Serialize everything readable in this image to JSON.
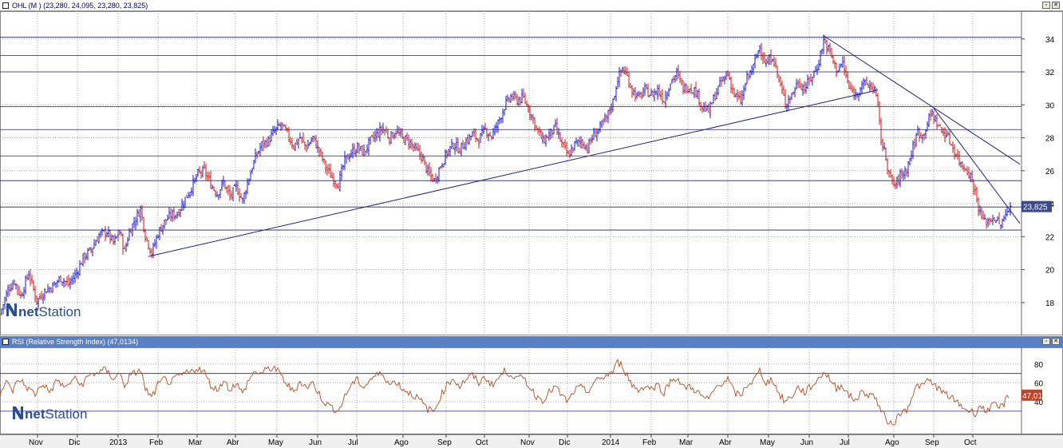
{
  "main_panel": {
    "header": "OHL (M ) (23,280, 24,095, 23,280, 23,825)",
    "last_price_label": "23,825"
  },
  "rsi_panel": {
    "header": "RSI (Relative Strength Index) (47,0134)",
    "last_value_label": "47,01"
  },
  "logo": {
    "text_bold": "net",
    "text_light": "Station"
  },
  "colors": {
    "up": "#0000c8",
    "down": "#c00000",
    "rsi_line": "#b84a1c",
    "trend_line": "#1a237e",
    "h_line": "#1a237e",
    "grid": "#a8a8a8",
    "rsi_bar": "#5b7fc5",
    "price_label_bg": "#3a4a8a",
    "rsi_label_bg": "#c0442a"
  },
  "chart_data": [
    {
      "type": "ohlc",
      "title": "OHL (M )",
      "y_ticks": [
        18,
        20,
        22,
        24,
        26,
        28,
        30,
        32,
        34
      ],
      "ylim": [
        16.2,
        35.2
      ],
      "x_tick_labels": [
        "Nov",
        "Dic",
        "2013",
        "Feb",
        "Mar",
        "Abr",
        "May",
        "Jun",
        "Jul",
        "Ago",
        "Sep",
        "Oct",
        "Nov",
        "Dic",
        "2014",
        "Feb",
        "Mar",
        "Abr",
        "May",
        "Jun",
        "Jul",
        "Ago",
        "Sep",
        "Oct"
      ],
      "grid": "dotted",
      "last": {
        "open": 23.28,
        "high": 24.095,
        "low": 23.28,
        "close": 23.825
      },
      "path": [
        [
          0,
          17.3
        ],
        [
          10,
          18.8
        ],
        [
          18,
          19.3
        ],
        [
          26,
          18.4
        ],
        [
          36,
          19.8
        ],
        [
          46,
          18.1
        ],
        [
          56,
          18.7
        ],
        [
          66,
          19.0
        ],
        [
          76,
          19.5
        ],
        [
          86,
          19.1
        ],
        [
          96,
          19.8
        ],
        [
          104,
          20.7
        ],
        [
          114,
          21.2
        ],
        [
          124,
          22.1
        ],
        [
          134,
          22.3
        ],
        [
          142,
          21.6
        ],
        [
          150,
          22.3
        ],
        [
          156,
          21.1
        ],
        [
          162,
          22.3
        ],
        [
          168,
          22.9
        ],
        [
          176,
          23.7
        ],
        [
          182,
          22.1
        ],
        [
          190,
          21.0
        ],
        [
          198,
          22.2
        ],
        [
          206,
          22.9
        ],
        [
          214,
          23.3
        ],
        [
          222,
          23.4
        ],
        [
          232,
          24.3
        ],
        [
          240,
          25.0
        ],
        [
          248,
          25.8
        ],
        [
          256,
          26.0
        ],
        [
          264,
          25.2
        ],
        [
          272,
          24.6
        ],
        [
          280,
          25.3
        ],
        [
          288,
          24.4
        ],
        [
          296,
          25.0
        ],
        [
          304,
          24.2
        ],
        [
          312,
          25.6
        ],
        [
          320,
          26.8
        ],
        [
          328,
          27.6
        ],
        [
          336,
          27.8
        ],
        [
          344,
          28.4
        ],
        [
          352,
          28.8
        ],
        [
          360,
          28.2
        ],
        [
          368,
          27.5
        ],
        [
          376,
          28.0
        ],
        [
          384,
          27.4
        ],
        [
          392,
          28.0
        ],
        [
          400,
          27.2
        ],
        [
          408,
          26.2
        ],
        [
          416,
          25.6
        ],
        [
          424,
          25.2
        ],
        [
          432,
          26.6
        ],
        [
          440,
          27.1
        ],
        [
          448,
          27.4
        ],
        [
          456,
          27.1
        ],
        [
          464,
          27.8
        ],
        [
          472,
          28.2
        ],
        [
          480,
          28.6
        ],
        [
          488,
          28.0
        ],
        [
          496,
          28.4
        ],
        [
          504,
          28.0
        ],
        [
          512,
          27.8
        ],
        [
          520,
          27.3
        ],
        [
          528,
          26.9
        ],
        [
          536,
          25.9
        ],
        [
          544,
          25.4
        ],
        [
          552,
          26.3
        ],
        [
          560,
          27.1
        ],
        [
          568,
          27.6
        ],
        [
          576,
          27.3
        ],
        [
          584,
          27.8
        ],
        [
          592,
          28.2
        ],
        [
          600,
          27.9
        ],
        [
          608,
          28.5
        ],
        [
          616,
          28.1
        ],
        [
          624,
          28.9
        ],
        [
          632,
          29.9
        ],
        [
          640,
          30.5
        ],
        [
          648,
          30.3
        ],
        [
          656,
          30.4
        ],
        [
          664,
          29.6
        ],
        [
          672,
          28.6
        ],
        [
          680,
          27.8
        ],
        [
          688,
          28.2
        ],
        [
          696,
          28.6
        ],
        [
          704,
          27.6
        ],
        [
          712,
          26.9
        ],
        [
          720,
          27.6
        ],
        [
          728,
          27.8
        ],
        [
          736,
          27.4
        ],
        [
          744,
          28.2
        ],
        [
          752,
          28.6
        ],
        [
          760,
          29.2
        ],
        [
          768,
          30.2
        ],
        [
          774,
          31.6
        ],
        [
          780,
          32.2
        ],
        [
          786,
          31.7
        ],
        [
          792,
          30.9
        ],
        [
          800,
          30.4
        ],
        [
          808,
          30.9
        ],
        [
          816,
          30.6
        ],
        [
          824,
          30.9
        ],
        [
          832,
          30.3
        ],
        [
          840,
          31.4
        ],
        [
          848,
          31.9
        ],
        [
          856,
          31.0
        ],
        [
          864,
          31.1
        ],
        [
          872,
          30.8
        ],
        [
          880,
          29.9
        ],
        [
          888,
          29.6
        ],
        [
          896,
          30.6
        ],
        [
          904,
          31.4
        ],
        [
          912,
          31.9
        ],
        [
          920,
          30.6
        ],
        [
          928,
          30.2
        ],
        [
          936,
          31.6
        ],
        [
          944,
          32.3
        ],
        [
          952,
          33.6
        ],
        [
          960,
          32.4
        ],
        [
          968,
          33.0
        ],
        [
          976,
          31.5
        ],
        [
          984,
          30.1
        ],
        [
          992,
          30.6
        ],
        [
          1000,
          31.4
        ],
        [
          1008,
          31.0
        ],
        [
          1016,
          31.6
        ],
        [
          1024,
          32.3
        ],
        [
          1032,
          33.9
        ],
        [
          1040,
          33.2
        ],
        [
          1048,
          32.1
        ],
        [
          1056,
          32.5
        ],
        [
          1064,
          31.0
        ],
        [
          1072,
          30.6
        ],
        [
          1080,
          31.3
        ],
        [
          1088,
          31.2
        ],
        [
          1096,
          31.0
        ],
        [
          1100,
          29.8
        ],
        [
          1104,
          27.9
        ],
        [
          1110,
          26.8
        ],
        [
          1116,
          25.4
        ],
        [
          1122,
          25.1
        ],
        [
          1128,
          25.7
        ],
        [
          1136,
          26.1
        ],
        [
          1144,
          27.4
        ],
        [
          1150,
          28.4
        ],
        [
          1156,
          28.1
        ],
        [
          1162,
          28.9
        ],
        [
          1168,
          29.5
        ],
        [
          1174,
          28.9
        ],
        [
          1180,
          28.4
        ],
        [
          1186,
          28.2
        ],
        [
          1192,
          27.6
        ],
        [
          1198,
          27.0
        ],
        [
          1204,
          26.4
        ],
        [
          1210,
          26.2
        ],
        [
          1216,
          25.7
        ],
        [
          1222,
          24.7
        ],
        [
          1228,
          23.4
        ],
        [
          1234,
          22.9
        ],
        [
          1240,
          23.0
        ],
        [
          1246,
          23.2
        ],
        [
          1252,
          22.7
        ],
        [
          1258,
          23.0
        ],
        [
          1264,
          23.8
        ]
      ],
      "h_lines": [
        34.1,
        33.0,
        32.0,
        29.9,
        28.5,
        26.9,
        25.4,
        23.8,
        22.4
      ],
      "trend_lines": [
        {
          "from": [
            186,
            20.8
          ],
          "to": [
            1100,
            30.9
          ]
        },
        {
          "from": [
            1032,
            34.2
          ],
          "to": [
            1278,
            26.4
          ]
        },
        {
          "from": [
            1170,
            29.8
          ],
          "to": [
            1278,
            22.8
          ]
        }
      ]
    },
    {
      "type": "line",
      "title": "RSI (Relative Strength Index)",
      "y_ticks": [
        40,
        60,
        80
      ],
      "ylim": [
        7,
        96
      ],
      "h_lines": [
        70,
        30
      ],
      "path": [
        [
          0,
          50
        ],
        [
          8,
          60
        ],
        [
          16,
          52
        ],
        [
          24,
          64
        ],
        [
          34,
          55
        ],
        [
          44,
          48
        ],
        [
          54,
          60
        ],
        [
          62,
          50
        ],
        [
          72,
          63
        ],
        [
          82,
          54
        ],
        [
          92,
          65
        ],
        [
          102,
          58
        ],
        [
          112,
          68
        ],
        [
          122,
          71
        ],
        [
          132,
          74
        ],
        [
          142,
          65
        ],
        [
          150,
          70
        ],
        [
          156,
          57
        ],
        [
          162,
          66
        ],
        [
          168,
          70
        ],
        [
          176,
          74
        ],
        [
          182,
          54
        ],
        [
          190,
          44
        ],
        [
          198,
          58
        ],
        [
          206,
          64
        ],
        [
          214,
          60
        ],
        [
          222,
          66
        ],
        [
          232,
          70
        ],
        [
          240,
          72
        ],
        [
          248,
          76
        ],
        [
          256,
          71
        ],
        [
          264,
          58
        ],
        [
          272,
          52
        ],
        [
          280,
          63
        ],
        [
          288,
          53
        ],
        [
          296,
          60
        ],
        [
          304,
          48
        ],
        [
          312,
          64
        ],
        [
          320,
          72
        ],
        [
          328,
          70
        ],
        [
          336,
          75
        ],
        [
          344,
          76
        ],
        [
          352,
          68
        ],
        [
          360,
          58
        ],
        [
          368,
          50
        ],
        [
          376,
          62
        ],
        [
          384,
          55
        ],
        [
          392,
          60
        ],
        [
          400,
          48
        ],
        [
          408,
          38
        ],
        [
          416,
          34
        ],
        [
          424,
          30
        ],
        [
          432,
          45
        ],
        [
          440,
          58
        ],
        [
          448,
          63
        ],
        [
          456,
          55
        ],
        [
          464,
          64
        ],
        [
          472,
          68
        ],
        [
          480,
          70
        ],
        [
          488,
          58
        ],
        [
          496,
          62
        ],
        [
          504,
          54
        ],
        [
          512,
          50
        ],
        [
          520,
          46
        ],
        [
          528,
          40
        ],
        [
          536,
          32
        ],
        [
          544,
          30
        ],
        [
          552,
          46
        ],
        [
          560,
          58
        ],
        [
          568,
          65
        ],
        [
          576,
          56
        ],
        [
          584,
          64
        ],
        [
          592,
          68
        ],
        [
          600,
          60
        ],
        [
          608,
          66
        ],
        [
          616,
          58
        ],
        [
          624,
          64
        ],
        [
          632,
          72
        ],
        [
          640,
          70
        ],
        [
          648,
          64
        ],
        [
          656,
          66
        ],
        [
          664,
          55
        ],
        [
          672,
          46
        ],
        [
          680,
          42
        ],
        [
          688,
          50
        ],
        [
          696,
          56
        ],
        [
          704,
          46
        ],
        [
          712,
          40
        ],
        [
          720,
          52
        ],
        [
          728,
          55
        ],
        [
          736,
          50
        ],
        [
          744,
          60
        ],
        [
          752,
          64
        ],
        [
          760,
          68
        ],
        [
          768,
          72
        ],
        [
          774,
          82
        ],
        [
          780,
          78
        ],
        [
          786,
          68
        ],
        [
          792,
          58
        ],
        [
          800,
          52
        ],
        [
          808,
          57
        ],
        [
          816,
          54
        ],
        [
          824,
          58
        ],
        [
          832,
          50
        ],
        [
          840,
          62
        ],
        [
          848,
          66
        ],
        [
          856,
          55
        ],
        [
          864,
          56
        ],
        [
          872,
          52
        ],
        [
          880,
          45
        ],
        [
          888,
          42
        ],
        [
          896,
          54
        ],
        [
          904,
          60
        ],
        [
          912,
          64
        ],
        [
          920,
          50
        ],
        [
          928,
          46
        ],
        [
          936,
          58
        ],
        [
          944,
          62
        ],
        [
          952,
          73
        ],
        [
          960,
          60
        ],
        [
          968,
          64
        ],
        [
          976,
          48
        ],
        [
          984,
          40
        ],
        [
          992,
          46
        ],
        [
          1000,
          55
        ],
        [
          1008,
          50
        ],
        [
          1016,
          56
        ],
        [
          1024,
          62
        ],
        [
          1032,
          72
        ],
        [
          1040,
          64
        ],
        [
          1048,
          54
        ],
        [
          1056,
          58
        ],
        [
          1064,
          46
        ],
        [
          1072,
          42
        ],
        [
          1080,
          50
        ],
        [
          1088,
          48
        ],
        [
          1096,
          46
        ],
        [
          1102,
          34
        ],
        [
          1110,
          22
        ],
        [
          1116,
          16
        ],
        [
          1122,
          20
        ],
        [
          1128,
          28
        ],
        [
          1136,
          32
        ],
        [
          1144,
          48
        ],
        [
          1150,
          58
        ],
        [
          1156,
          56
        ],
        [
          1162,
          63
        ],
        [
          1168,
          60
        ],
        [
          1174,
          56
        ],
        [
          1180,
          50
        ],
        [
          1186,
          48
        ],
        [
          1192,
          44
        ],
        [
          1198,
          40
        ],
        [
          1204,
          36
        ],
        [
          1210,
          32
        ],
        [
          1216,
          30
        ],
        [
          1222,
          28
        ],
        [
          1228,
          36
        ],
        [
          1234,
          30
        ],
        [
          1240,
          34
        ],
        [
          1246,
          36
        ],
        [
          1252,
          33
        ],
        [
          1258,
          38
        ],
        [
          1264,
          47
        ]
      ]
    }
  ]
}
